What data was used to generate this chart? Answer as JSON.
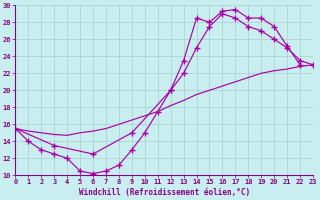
{
  "bg_color": "#c8eef0",
  "grid_color": "#aacccc",
  "line_color": "#aa00aa",
  "xlabel": "Windchill (Refroidissement éolien,°C)",
  "xlim": [
    0,
    23
  ],
  "ylim": [
    10,
    30
  ],
  "xticks": [
    0,
    1,
    2,
    3,
    4,
    5,
    6,
    7,
    8,
    9,
    10,
    11,
    12,
    13,
    14,
    15,
    16,
    17,
    18,
    19,
    20,
    21,
    22,
    23
  ],
  "yticks": [
    10,
    12,
    14,
    16,
    18,
    20,
    22,
    24,
    26,
    28,
    30
  ],
  "curve_wavy_x": [
    0,
    1,
    2,
    3,
    4,
    5,
    6,
    7,
    8,
    9,
    10,
    11,
    12,
    13,
    14,
    15,
    16,
    17,
    18,
    19,
    20,
    21,
    22
  ],
  "curve_wavy_y": [
    15.5,
    14.0,
    13.0,
    12.5,
    12.0,
    10.5,
    10.2,
    10.5,
    11.2,
    13.0,
    15.0,
    17.5,
    20.0,
    23.5,
    28.5,
    28.0,
    29.3,
    29.5,
    28.5,
    28.5,
    27.5,
    25.2,
    23.0
  ],
  "curve_mid_x": [
    0,
    3,
    6,
    9,
    12,
    13,
    14,
    15,
    16,
    17,
    18,
    19,
    20,
    21,
    22,
    23
  ],
  "curve_mid_y": [
    15.5,
    13.5,
    12.5,
    15.0,
    20.0,
    22.0,
    25.0,
    27.5,
    29.0,
    28.5,
    27.5,
    27.0,
    26.0,
    25.0,
    23.5,
    23.0
  ],
  "curve_straight_x": [
    0,
    1,
    2,
    3,
    4,
    5,
    6,
    7,
    8,
    9,
    10,
    11,
    12,
    13,
    14,
    15,
    16,
    17,
    18,
    19,
    20,
    21,
    22,
    23
  ],
  "curve_straight_y": [
    15.5,
    15.2,
    15.0,
    14.8,
    14.7,
    15.0,
    15.2,
    15.5,
    16.0,
    16.5,
    17.0,
    17.5,
    18.2,
    18.8,
    19.5,
    20.0,
    20.5,
    21.0,
    21.5,
    22.0,
    22.3,
    22.5,
    22.8,
    23.0
  ]
}
